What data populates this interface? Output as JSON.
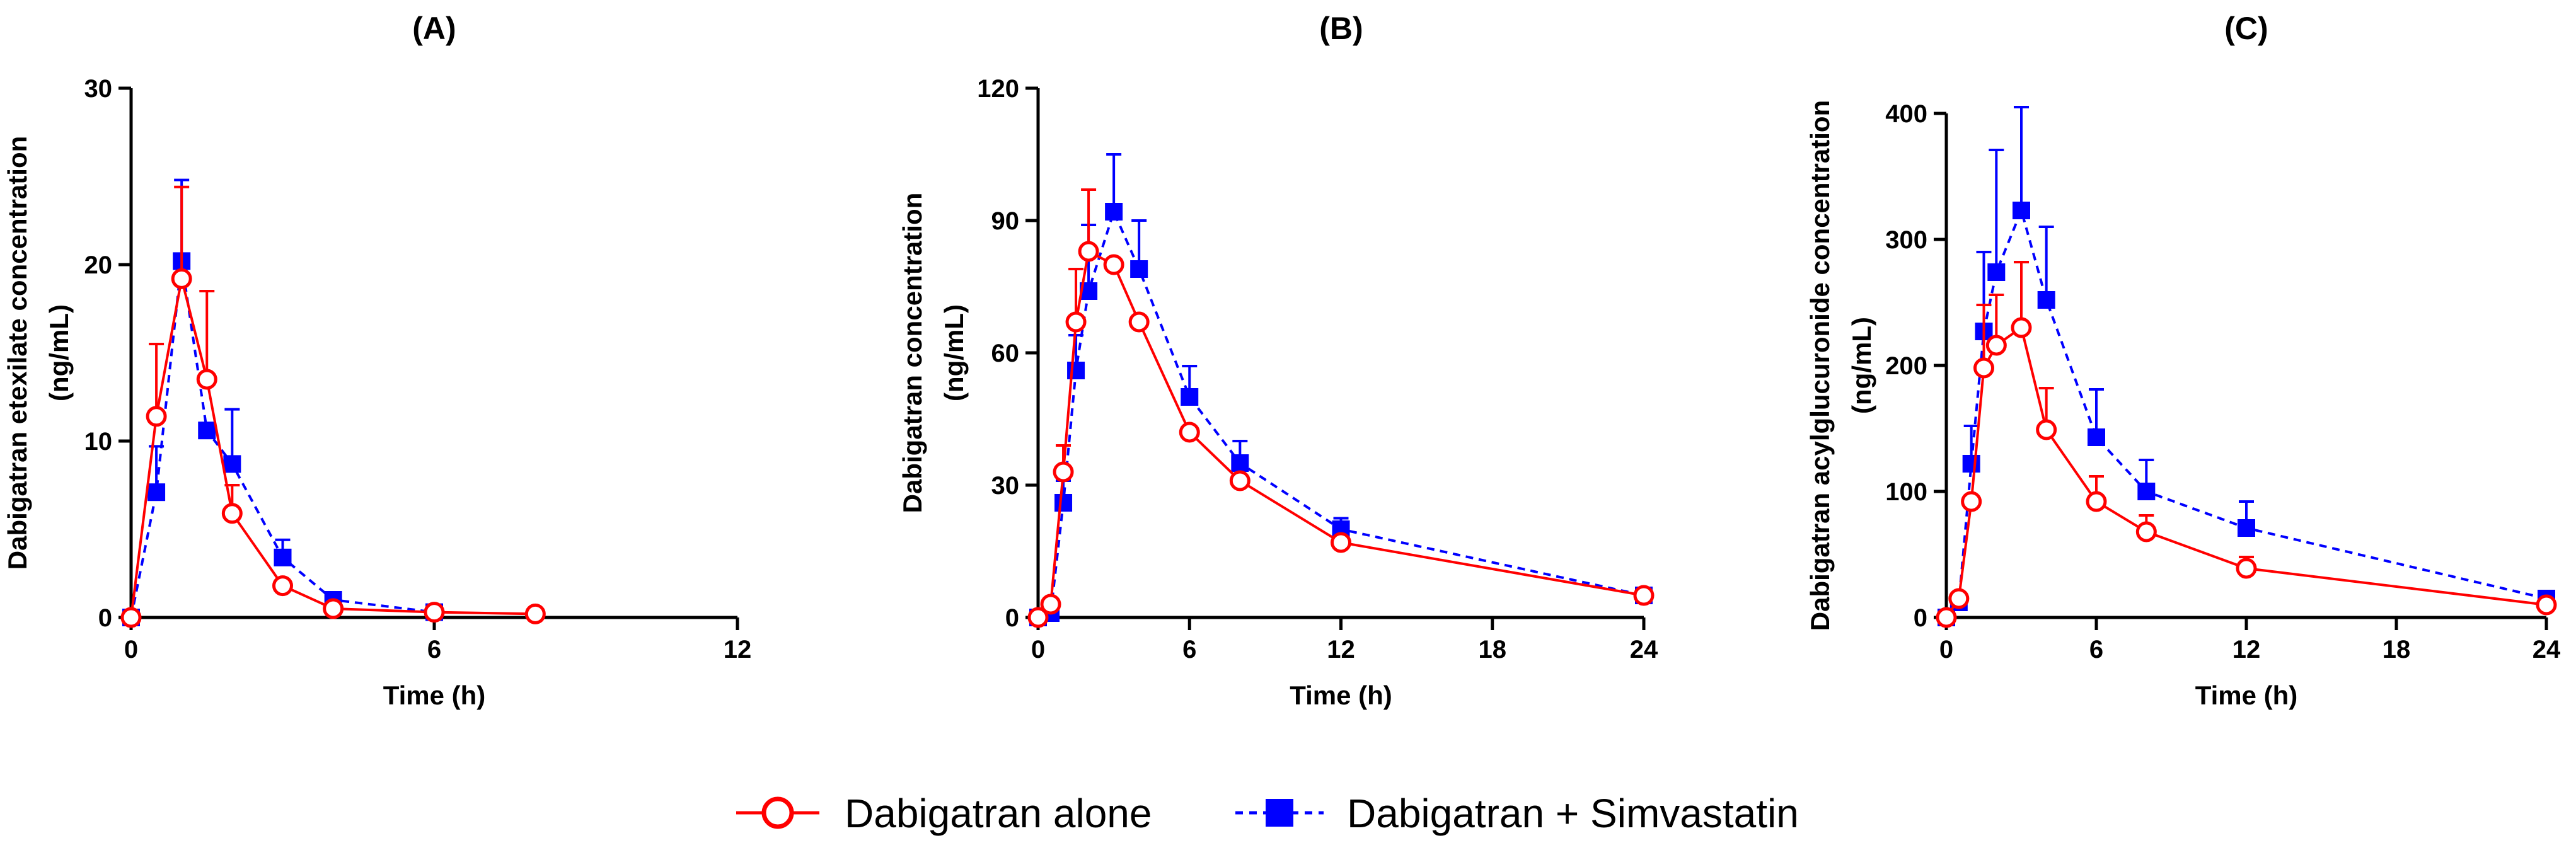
{
  "chart_data": [
    {
      "type": "line",
      "title": "(A)",
      "xlabel": "Time (h)",
      "ylabel": [
        "Dabigatran etexilate concentration",
        "(ng/mL)"
      ],
      "xlim": [
        0,
        12
      ],
      "ylim": [
        0,
        30
      ],
      "xticks": [
        0,
        6,
        12
      ],
      "yticks": [
        0,
        10,
        20,
        30
      ],
      "grid": false,
      "series": [
        {
          "name": "Dabigatran alone",
          "color": "#ff0000",
          "x": [
            0,
            0.5,
            1,
            1.5,
            2,
            3,
            4,
            6,
            8
          ],
          "y": [
            0,
            11.4,
            19.2,
            13.5,
            5.9,
            1.8,
            0.5,
            0.3,
            0.2
          ],
          "err": [
            0,
            4.1,
            5.2,
            5.0,
            1.6,
            0,
            0,
            0,
            0
          ]
        },
        {
          "name": "Dabigatran + Simvastatin",
          "color": "#0000ff",
          "x": [
            0,
            0.5,
            1,
            1.5,
            2,
            3,
            4,
            6
          ],
          "y": [
            0,
            7.1,
            20.2,
            10.6,
            8.7,
            3.4,
            1.0,
            0.3
          ],
          "err": [
            0,
            2.6,
            4.6,
            0,
            3.1,
            1.0,
            0,
            0
          ]
        }
      ]
    },
    {
      "type": "line",
      "title": "(B)",
      "xlabel": "Time (h)",
      "ylabel": [
        "Dabigatran concentration",
        "(ng/mL)"
      ],
      "xlim": [
        0,
        24
      ],
      "ylim": [
        0,
        120
      ],
      "xticks": [
        0,
        6,
        12,
        18,
        24
      ],
      "yticks": [
        0,
        30,
        60,
        90,
        120
      ],
      "grid": false,
      "series": [
        {
          "name": "Dabigatran alone",
          "color": "#ff0000",
          "x": [
            0,
            0.5,
            1,
            1.5,
            2,
            3,
            4,
            6,
            8,
            12,
            24
          ],
          "y": [
            0,
            3,
            33,
            67,
            83,
            80,
            67,
            42,
            31,
            17,
            5
          ],
          "err": [
            0,
            0,
            6,
            12,
            14,
            0,
            0,
            0,
            0,
            0,
            0
          ]
        },
        {
          "name": "Dabigatran + Simvastatin",
          "color": "#0000ff",
          "x": [
            0,
            0.5,
            1,
            1.5,
            2,
            3,
            4,
            6,
            8,
            12,
            24
          ],
          "y": [
            0,
            1,
            26,
            56,
            74,
            92,
            79,
            50,
            35,
            20,
            5
          ],
          "err": [
            0,
            0,
            5,
            8,
            15,
            13,
            11,
            7,
            5,
            2.5,
            1
          ]
        }
      ]
    },
    {
      "type": "line",
      "title": "(C)",
      "xlabel": "Time  (h)",
      "ylabel": [
        "Dabigatran acylglucuronide concentration",
        "(ng/mL)"
      ],
      "xlim": [
        0,
        24
      ],
      "ylim": [
        0,
        400
      ],
      "xticks": [
        0,
        6,
        12,
        18,
        24
      ],
      "yticks": [
        0,
        100,
        200,
        300,
        400
      ],
      "grid": false,
      "series": [
        {
          "name": "Dabigatran alone",
          "color": "#ff0000",
          "x": [
            0,
            0.5,
            1,
            1.5,
            2,
            3,
            4,
            6,
            8,
            12,
            24
          ],
          "y": [
            0,
            15,
            92,
            198,
            216,
            230,
            149,
            92,
            68,
            39,
            10
          ],
          "err": [
            0,
            0,
            0,
            50,
            40,
            52,
            33,
            20,
            13,
            9,
            0
          ]
        },
        {
          "name": "Dabigatran + Simvastatin",
          "color": "#0000ff",
          "x": [
            0,
            0.5,
            1,
            1.5,
            2,
            3,
            4,
            6,
            8,
            12,
            24
          ],
          "y": [
            0,
            12,
            122,
            227,
            274,
            323,
            252,
            143,
            100,
            71,
            15
          ],
          "err": [
            0,
            5,
            30,
            63,
            97,
            82,
            58,
            38,
            25,
            21,
            0
          ]
        }
      ]
    }
  ],
  "legend": {
    "placement": "bottom-center",
    "items": [
      {
        "label": "Dabigatran alone",
        "color": "#ff0000",
        "marker": "open-circle",
        "line": "solid"
      },
      {
        "label": "Dabigatran + Simvastatin",
        "color": "#0000ff",
        "marker": "filled-square",
        "line": "dashed"
      }
    ]
  }
}
